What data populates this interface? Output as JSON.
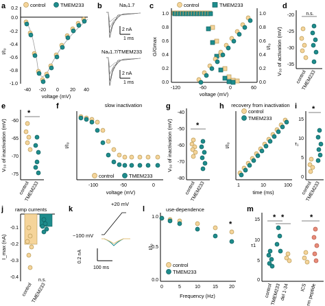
{
  "panel_letters": [
    "a",
    "b",
    "c",
    "d",
    "e",
    "f",
    "g",
    "h",
    "i",
    "j",
    "k",
    "l",
    "m"
  ],
  "legend": {
    "control": "control",
    "tmem233": "TMEM233"
  },
  "colors": {
    "control": "#f5d49a",
    "tmem233": "#1e8c8c"
  },
  "a": {
    "ylabel": "I/I₀",
    "xlabel": "voltage (mV)",
    "yticks": [
      "0.2",
      "0.0",
      "-0.2",
      "-0.4",
      "-0.6",
      "-0.8",
      "-1.0"
    ],
    "xticks": [
      "-40",
      "-20",
      "0",
      "20",
      "40"
    ]
  },
  "b": {
    "label1": "Naᵥ1.7",
    "label2": "Naᵥ1.7/TMEM233",
    "scale_i": "2 nA",
    "scale_t": "1 ms"
  },
  "c": {
    "ylabel": "G/Gmax",
    "ylabel2": "I/I₀",
    "xlabel": "voltage (mV)",
    "yticks": [
      "1.0",
      "0.8",
      "0.6",
      "0.4",
      "0.2",
      "0.0"
    ],
    "xticks": [
      "-120",
      "-60",
      "0",
      "60"
    ]
  },
  "d": {
    "ylabel": "V₅₀ of activation (mV)",
    "yticks": [
      "-20",
      "-25",
      "-30",
      "-35"
    ],
    "sig": "n.s.",
    "xcat": [
      "control",
      "TMEM233"
    ]
  },
  "e": {
    "ylabel": "V₅₀ of inactivation (mV)",
    "yticks": [
      "-60",
      "-65",
      "-70",
      "-75"
    ],
    "sig": "*",
    "xcat": [
      "control",
      "TMEM233"
    ]
  },
  "f": {
    "title": "slow inactivation",
    "ylabel": "I/I₀",
    "xlabel": "voltage (mV)",
    "xticks": [
      "-100",
      "-50",
      "0"
    ]
  },
  "g": {
    "ylabel": "V₅₀ of inactivation (mV)",
    "yticks": [
      "-40",
      "-50",
      "-60",
      "-70",
      "-80"
    ],
    "sig": "*",
    "xcat": [
      "control",
      "TMEM233"
    ]
  },
  "h": {
    "title": "recovery from inactivation",
    "ylabel": "I/I₀",
    "xlabel": "time (ms)",
    "xticks": [
      "1",
      "10",
      "100"
    ]
  },
  "i": {
    "ylabel": "τ₁",
    "yticks": [
      "15",
      "10",
      "5",
      "0"
    ],
    "sig": "*",
    "xcat": [
      "control",
      "TMEM233"
    ]
  },
  "j": {
    "title": "ramp currents",
    "ylabel": "I_max (nA)",
    "yticks": [
      "-0.1",
      "-0.2",
      "-0.3",
      "-0.4"
    ],
    "sig": "n.s.",
    "xcat": [
      "control",
      "TMEM233"
    ]
  },
  "k": {
    "label_v1": "−100 mV",
    "label_v2": "+20 mV",
    "scale_i": "0.2 nA",
    "scale_t": "100 ms"
  },
  "l": {
    "title": "use-dependence",
    "ylabel": "I/I₀",
    "xlabel": "Frequency (Hz)",
    "xticks": [
      "0",
      "5",
      "10",
      "15",
      "20"
    ],
    "yticks": [
      "1.0",
      "0.5",
      "0.0"
    ],
    "sig": "*"
  },
  "m": {
    "ylabel": "τ1",
    "yticks": [
      "15",
      "10",
      "5",
      "0"
    ],
    "sig1": "*",
    "sig2": "*",
    "sig3": "*",
    "xcat": [
      "control",
      "TMEM233",
      "del 1-34",
      "ICS",
      "N-term peptide"
    ]
  }
}
